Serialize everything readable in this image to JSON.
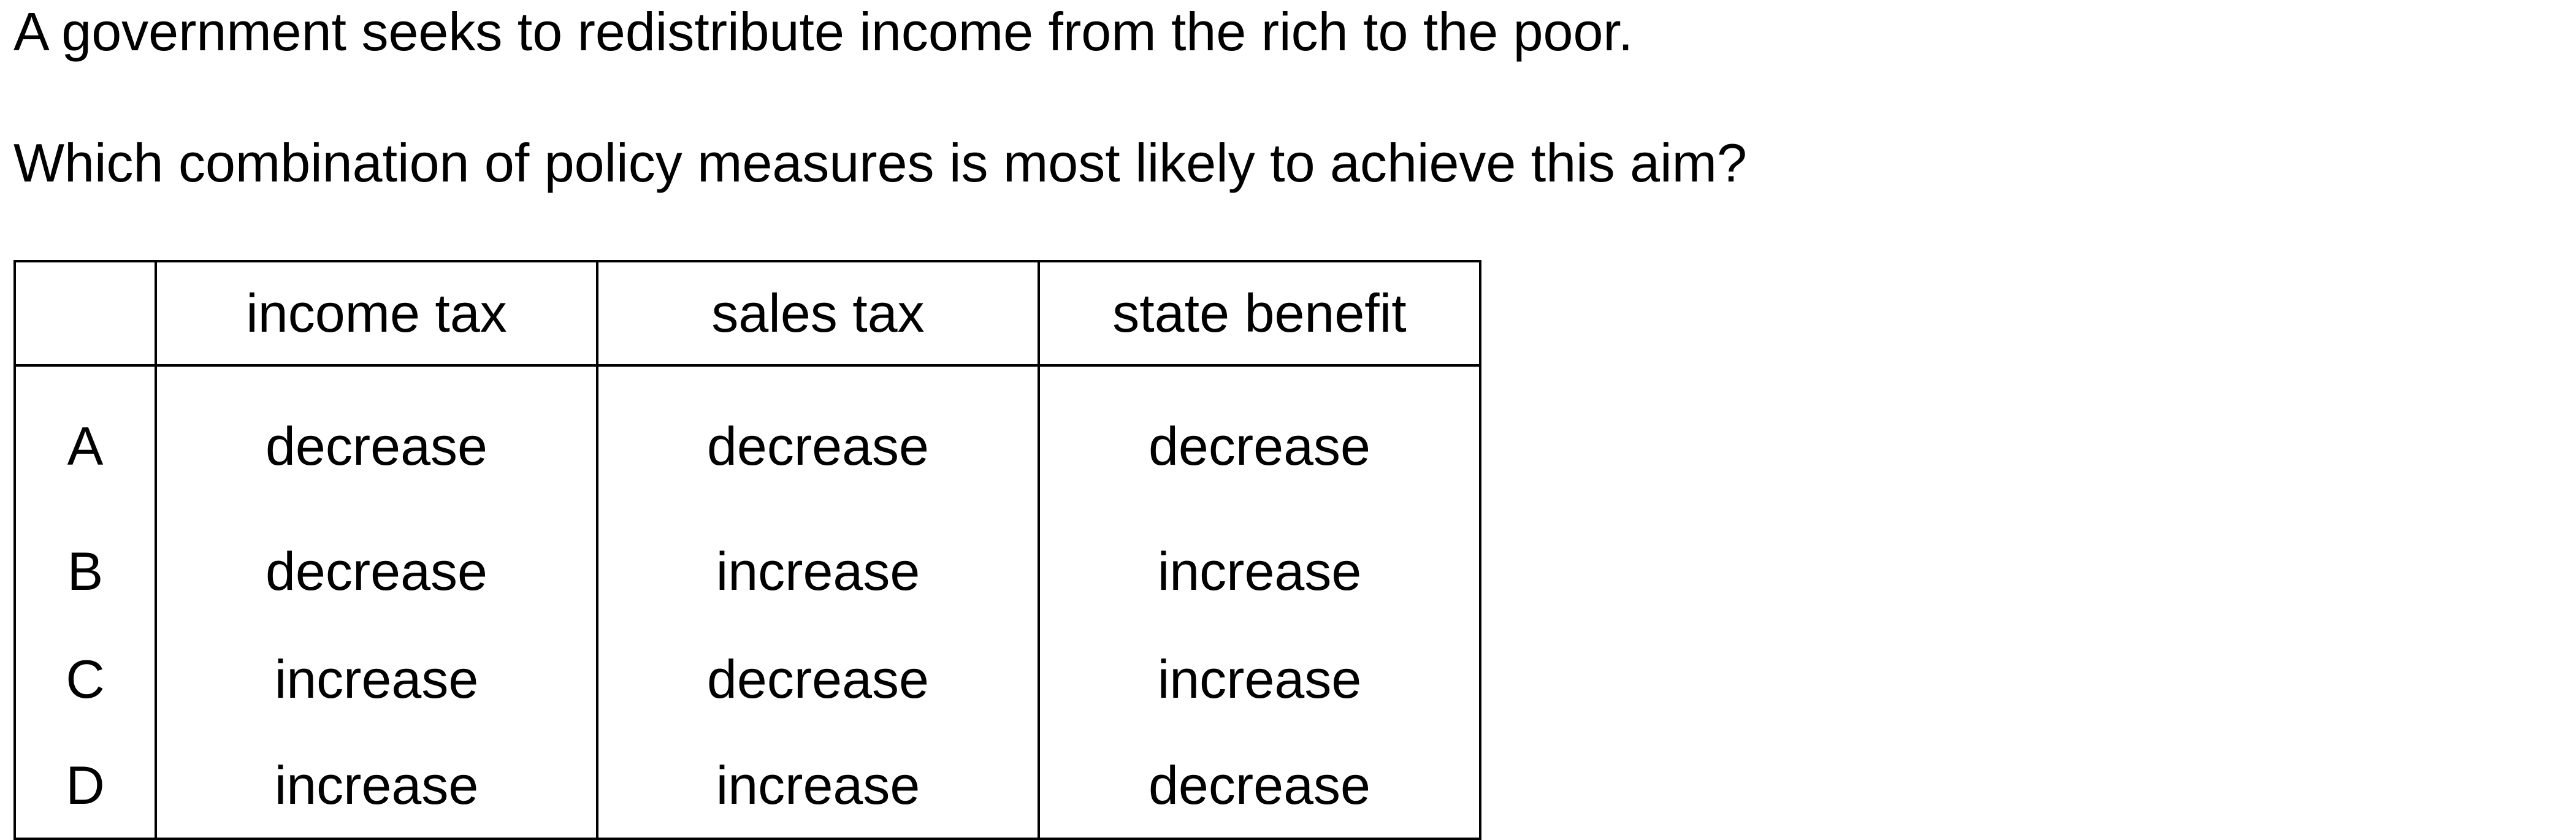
{
  "question": {
    "stem": "A government seeks to redistribute income from the rich to the poor.",
    "prompt": "Which combination of policy measures is most likely to achieve this aim?"
  },
  "table": {
    "headers": [
      "",
      "income tax",
      "sales tax",
      "state benefit"
    ],
    "rows": [
      {
        "key": "A",
        "income_tax": "decrease",
        "sales_tax": "decrease",
        "state_benefit": "decrease"
      },
      {
        "key": "B",
        "income_tax": "decrease",
        "sales_tax": "increase",
        "state_benefit": "increase"
      },
      {
        "key": "C",
        "income_tax": "increase",
        "sales_tax": "decrease",
        "state_benefit": "increase"
      },
      {
        "key": "D",
        "income_tax": "increase",
        "sales_tax": "increase",
        "state_benefit": "decrease"
      }
    ]
  }
}
